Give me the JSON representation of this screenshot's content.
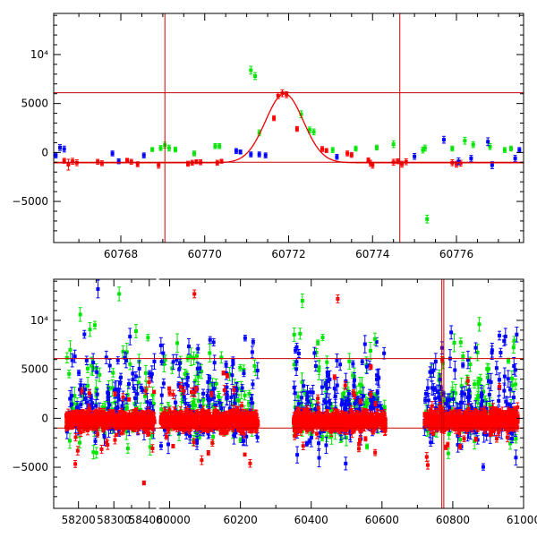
{
  "chart_data": [
    {
      "type": "scatter",
      "panel": "top",
      "title": "",
      "xlabel": "",
      "ylabel": "",
      "xlim": [
        60766.4,
        60777.6
      ],
      "ylim": [
        -9200,
        14200
      ],
      "xticks": [
        60768,
        60770,
        60772,
        60774,
        60776
      ],
      "yticks": [
        -5000,
        0,
        5000
      ],
      "ytick_special": {
        "value": 10000,
        "label": "10⁴"
      },
      "hlines": [
        6100,
        -1000
      ],
      "vlines": [
        60769.05,
        60774.65
      ],
      "colors": {
        "red": "#ff0000",
        "green": "#00e600",
        "blue": "#0000ff",
        "ref_lines": "#cc0000",
        "model": "#ee0000"
      },
      "model_curve": {
        "baseline": -1050,
        "peak": 6000,
        "center": 60771.9,
        "sigma": 0.45
      },
      "series": [
        {
          "name": "red",
          "points": [
            [
              60766.65,
              -850,
              250
            ],
            [
              60766.75,
              -1250,
              550
            ],
            [
              60766.85,
              -900,
              300
            ],
            [
              60766.95,
              -1050,
              300
            ],
            [
              60767.45,
              -950,
              250
            ],
            [
              60767.55,
              -1100,
              250
            ],
            [
              60768.15,
              -800,
              200
            ],
            [
              60768.25,
              -950,
              250
            ],
            [
              60768.4,
              -1200,
              250
            ],
            [
              60768.9,
              -1300,
              300
            ],
            [
              60769.6,
              -1150,
              250
            ],
            [
              60769.7,
              -1050,
              250
            ],
            [
              60769.8,
              -950,
              200
            ],
            [
              60769.9,
              -1000,
              250
            ],
            [
              60770.3,
              -1050,
              250
            ],
            [
              60770.4,
              -900,
              200
            ],
            [
              60771.65,
              3500,
              250
            ],
            [
              60771.75,
              5800,
              300
            ],
            [
              60771.85,
              6050,
              350
            ],
            [
              60771.95,
              5900,
              300
            ],
            [
              60772.2,
              2400,
              250
            ],
            [
              60772.8,
              350,
              250
            ],
            [
              60772.9,
              200,
              200
            ],
            [
              60773.4,
              -100,
              250
            ],
            [
              60773.5,
              -250,
              250
            ],
            [
              60773.9,
              -800,
              250
            ],
            [
              60773.95,
              -1100,
              300
            ],
            [
              60774.0,
              -1300,
              300
            ],
            [
              60774.5,
              -1000,
              300
            ],
            [
              60774.6,
              -900,
              250
            ],
            [
              60774.7,
              -1200,
              300
            ],
            [
              60774.8,
              -950,
              300
            ],
            [
              60775.9,
              -1050,
              300
            ],
            [
              60776.0,
              -1200,
              300
            ],
            [
              60776.1,
              -1100,
              300
            ]
          ]
        },
        {
          "name": "green",
          "points": [
            [
              60769.05,
              750,
              300
            ],
            [
              60769.15,
              450,
              300
            ],
            [
              60769.3,
              300,
              250
            ],
            [
              60769.75,
              -100,
              250
            ],
            [
              60770.25,
              650,
              250
            ],
            [
              60770.35,
              650,
              250
            ],
            [
              60771.1,
              8400,
              400
            ],
            [
              60771.2,
              7800,
              350
            ],
            [
              60771.3,
              2000,
              300
            ],
            [
              60772.3,
              3900,
              350
            ],
            [
              60772.5,
              2300,
              300
            ],
            [
              60772.6,
              2100,
              300
            ],
            [
              60773.05,
              250,
              250
            ],
            [
              60773.6,
              400,
              250
            ],
            [
              60774.1,
              500,
              250
            ],
            [
              60774.5,
              850,
              350
            ],
            [
              60775.2,
              250,
              300
            ],
            [
              60775.25,
              450,
              300
            ],
            [
              60775.3,
              -6800,
              400
            ],
            [
              60775.9,
              400,
              250
            ],
            [
              60776.2,
              1200,
              350
            ],
            [
              60776.4,
              800,
              300
            ],
            [
              60776.8,
              600,
              300
            ],
            [
              60777.15,
              250,
              250
            ],
            [
              60777.3,
              400,
              250
            ],
            [
              60768.75,
              300,
              200
            ],
            [
              60768.95,
              450,
              250
            ]
          ]
        },
        {
          "name": "blue",
          "points": [
            [
              60766.45,
              -300,
              250
            ],
            [
              60766.55,
              500,
              300
            ],
            [
              60766.65,
              350,
              300
            ],
            [
              60767.8,
              -100,
              250
            ],
            [
              60767.95,
              -900,
              250
            ],
            [
              60768.55,
              -300,
              250
            ],
            [
              60770.75,
              150,
              250
            ],
            [
              60770.85,
              50,
              200
            ],
            [
              60771.1,
              -200,
              250
            ],
            [
              60771.3,
              -200,
              250
            ],
            [
              60771.45,
              -300,
              250
            ],
            [
              60773.15,
              -450,
              250
            ],
            [
              60775.0,
              -400,
              300
            ],
            [
              60775.7,
              1300,
              350
            ],
            [
              60776.05,
              -900,
              350
            ],
            [
              60776.35,
              -600,
              300
            ],
            [
              60776.75,
              1100,
              400
            ],
            [
              60776.85,
              -1300,
              350
            ],
            [
              60777.4,
              -600,
              300
            ],
            [
              60777.5,
              250,
              250
            ]
          ]
        }
      ]
    },
    {
      "type": "scatter",
      "panel": "bottom",
      "title": "",
      "xlabel": "",
      "ylabel": "",
      "xlim": [
        58130,
        61000
      ],
      "ylim": [
        -9200,
        14200
      ],
      "xticks": [
        58200,
        58300,
        58400,
        60000,
        60200,
        60400,
        60600,
        60800,
        61000
      ],
      "xtick_labels": [
        "58200",
        "58300",
        "58400",
        "60000",
        "60200",
        "60400",
        "60600",
        "60800",
        "61000"
      ],
      "xtick_minor": [
        58250,
        58350,
        60100,
        60300,
        60500,
        60700,
        60900
      ],
      "axis_break": {
        "after": 58420,
        "before": 59970
      },
      "yticks": [
        -5000,
        0,
        5000
      ],
      "ytick_special": {
        "value": 10000,
        "label": "10⁴"
      },
      "hlines": [
        6100,
        -1000
      ],
      "vlines": [
        60769.05,
        60774.65
      ],
      "colors": {
        "red": "#ff0000",
        "green": "#00e600",
        "blue": "#0000ff",
        "ref_lines": "#cc0000"
      },
      "seasons": [
        {
          "start": 58165,
          "end": 58415,
          "core_center": -250,
          "core_halfwidth": 1100,
          "red_per_day": 2.2,
          "green_per_day": 0.35,
          "blue_per_day": 0.5
        },
        {
          "start": 59975,
          "end": 60250,
          "core_center": -250,
          "core_halfwidth": 1100,
          "red_per_day": 2.2,
          "green_per_day": 0.35,
          "blue_per_day": 0.5
        },
        {
          "start": 60350,
          "end": 60610,
          "core_center": -300,
          "core_halfwidth": 1150,
          "red_per_day": 2.2,
          "green_per_day": 0.4,
          "blue_per_day": 0.6
        },
        {
          "start": 60720,
          "end": 60985,
          "core_center": -250,
          "core_halfwidth": 1100,
          "red_per_day": 2.2,
          "green_per_day": 0.4,
          "blue_per_day": 0.6
        }
      ],
      "notable_points": [
        {
          "color": "red",
          "x": 58385,
          "y": -6600,
          "err": 200
        },
        {
          "color": "green",
          "x": 58205,
          "y": 10600,
          "err": 700
        },
        {
          "color": "green",
          "x": 58315,
          "y": 12700,
          "err": 700
        },
        {
          "color": "blue",
          "x": 58255,
          "y": 13200,
          "err": 900
        },
        {
          "color": "green",
          "x": 60375,
          "y": 12000,
          "err": 700
        },
        {
          "color": "green",
          "x": 60875,
          "y": 9600,
          "err": 700
        },
        {
          "color": "red",
          "x": 60070,
          "y": 12700,
          "err": 400
        },
        {
          "color": "red",
          "x": 60475,
          "y": 12200,
          "err": 400
        },
        {
          "color": "blue",
          "x": 60945,
          "y": 7900,
          "err": 500
        },
        {
          "color": "green",
          "x": 60580,
          "y": 8100,
          "err": 600
        },
        {
          "color": "red",
          "x": 60770,
          "y": 6000,
          "err": 300
        }
      ]
    }
  ]
}
